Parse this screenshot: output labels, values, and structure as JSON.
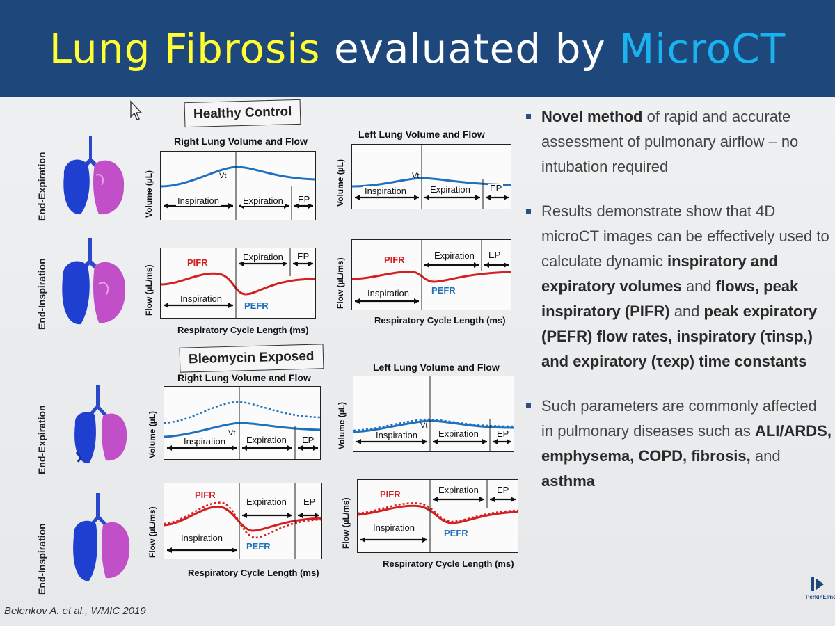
{
  "title": {
    "part1": "Lung Fibrosis",
    "part2": " evaluated by ",
    "part3": "MicroCT"
  },
  "groups": {
    "healthy": "Healthy Control",
    "bleomycin": "Bleomycin Exposed"
  },
  "row_labels": {
    "end_expiration": "End-Expiration",
    "end_inspiration": "End-Inspiration"
  },
  "chart_titles": {
    "right": "Right Lung Volume and  Flow",
    "left": "Left Lung Volume and  Flow"
  },
  "axis": {
    "volume": "Volume (µL)",
    "flow": "Flow (µL/ms)",
    "x": "Respiratory Cycle Length (ms)"
  },
  "phases": {
    "inspiration": "Inspiration",
    "expiration": "Expiration",
    "ep": "EP",
    "vt": "Vt",
    "pifr": "PIFR",
    "pefr": "PEFR"
  },
  "bullets": {
    "b1_bold": "Novel method",
    "b1_rest": " of rapid and accurate assessment of pulmonary airflow – no intubation required",
    "b2_a": "Results demonstrate show that 4D microCT images can be effectively used to calculate dynamic ",
    "b2_b": "inspiratory and expiratory volumes",
    "b2_c": " and ",
    "b2_d": "flows, peak inspiratory (PIFR)",
    "b2_e": " and ",
    "b2_f": "peak expiratory (PEFR) flow rates, inspiratory (τinsp,) and expiratory (τexp) time constants",
    "b3_a": "Such parameters are commonly affected in pulmonary diseases such as ",
    "b3_b": "ALI/ARDS, emphysema, COPD, fibrosis,",
    "b3_c": " and ",
    "b3_d": "asthma"
  },
  "citation": "Belenkov A. et al., WMIC 2019",
  "logo_text": "PerkinElmer",
  "colors": {
    "banner": "#1e477b",
    "title_yellow": "#ffff33",
    "title_cyan": "#19b4ef",
    "volume_curve": "#2070c0",
    "flow_curve": "#d42020",
    "lung_blue": "#1f3fd0",
    "lung_magenta": "#c04fc8"
  }
}
